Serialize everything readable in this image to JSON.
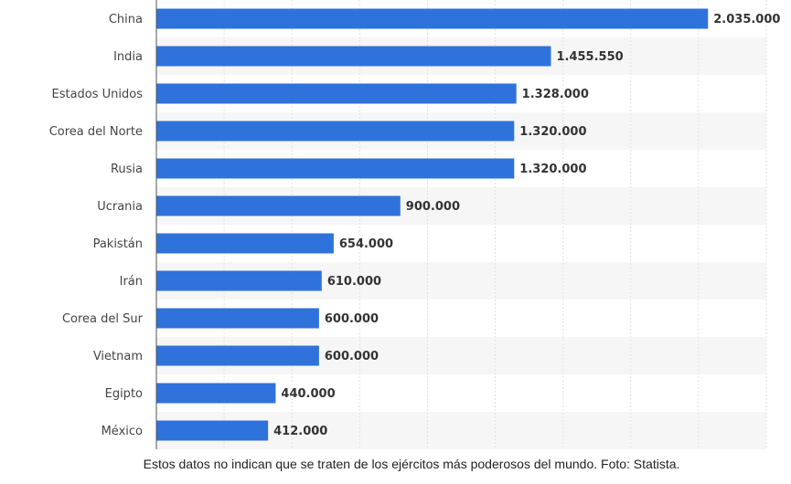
{
  "chart_data": {
    "type": "bar",
    "orientation": "horizontal",
    "categories": [
      "China",
      "India",
      "Estados Unidos",
      "Corea del Norte",
      "Rusia",
      "Ucrania",
      "Pakistán",
      "Irán",
      "Corea del Sur",
      "Vietnam",
      "Egipto",
      "México"
    ],
    "values": [
      2035000,
      1455550,
      1328000,
      1320000,
      1320000,
      900000,
      654000,
      610000,
      600000,
      600000,
      440000,
      412000
    ],
    "value_labels": [
      "2.035.000",
      "1.455.550",
      "1.328.000",
      "1.320.000",
      "1.320.000",
      "900.000",
      "654.000",
      "610.000",
      "600.000",
      "600.000",
      "440.000",
      "412.000"
    ],
    "xlim": [
      0,
      2250000
    ],
    "grid": true,
    "bar_color": "#2f72dc",
    "band_color": "#f6f6f6"
  },
  "caption": "Estos datos no indican que se traten de los ejércitos más poderosos del mundo. Foto: Statista."
}
